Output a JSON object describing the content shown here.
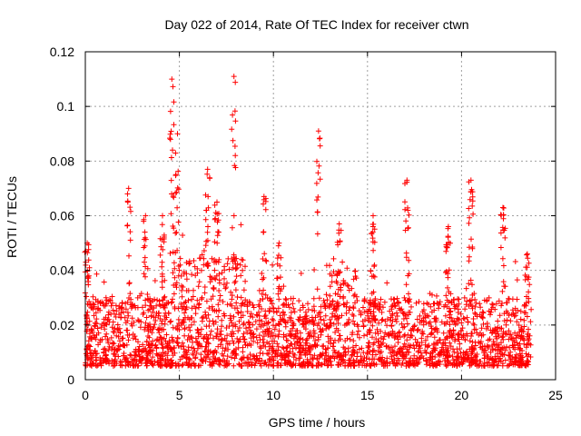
{
  "chart_data": {
    "type": "scatter",
    "title": "Day 022 of 2014, Rate Of TEC Index for receiver ctwn",
    "xlabel": "GPS time / hours",
    "ylabel": "ROTI / TECUs",
    "xlim": [
      0,
      25
    ],
    "ylim": [
      0,
      0.12
    ],
    "xticks": [
      "0",
      "5",
      "10",
      "15",
      "20",
      "25"
    ],
    "yticks": [
      "0",
      "0.02",
      "0.04",
      "0.06",
      "0.08",
      "0.1",
      "0.12"
    ],
    "xtick_values": [
      0,
      5,
      10,
      15,
      20,
      25
    ],
    "ytick_values": [
      0,
      0.02,
      0.04,
      0.06,
      0.08,
      0.1,
      0.12
    ],
    "grid": true,
    "marker": "+",
    "series": [
      {
        "name": "ROTI",
        "color": "#ff0000",
        "description": "Dense cloud of ROTI samples over 24 h, base mostly 0.005–0.03 TECU, with spikes",
        "time_range": [
          0.0,
          23.7
        ],
        "baseline_low": 0.005,
        "baseline_high": 0.03,
        "spikes": [
          {
            "x": 0.1,
            "y": 0.05
          },
          {
            "x": 2.3,
            "y": 0.07
          },
          {
            "x": 3.2,
            "y": 0.06
          },
          {
            "x": 4.1,
            "y": 0.06
          },
          {
            "x": 4.6,
            "y": 0.11
          },
          {
            "x": 4.9,
            "y": 0.09
          },
          {
            "x": 6.5,
            "y": 0.077
          },
          {
            "x": 7.0,
            "y": 0.065
          },
          {
            "x": 7.9,
            "y": 0.111
          },
          {
            "x": 9.5,
            "y": 0.067
          },
          {
            "x": 10.3,
            "y": 0.05
          },
          {
            "x": 12.4,
            "y": 0.091
          },
          {
            "x": 13.5,
            "y": 0.057
          },
          {
            "x": 15.3,
            "y": 0.06
          },
          {
            "x": 17.1,
            "y": 0.073
          },
          {
            "x": 19.3,
            "y": 0.056
          },
          {
            "x": 20.5,
            "y": 0.073
          },
          {
            "x": 22.2,
            "y": 0.063
          },
          {
            "x": 23.5,
            "y": 0.046
          }
        ]
      }
    ]
  }
}
